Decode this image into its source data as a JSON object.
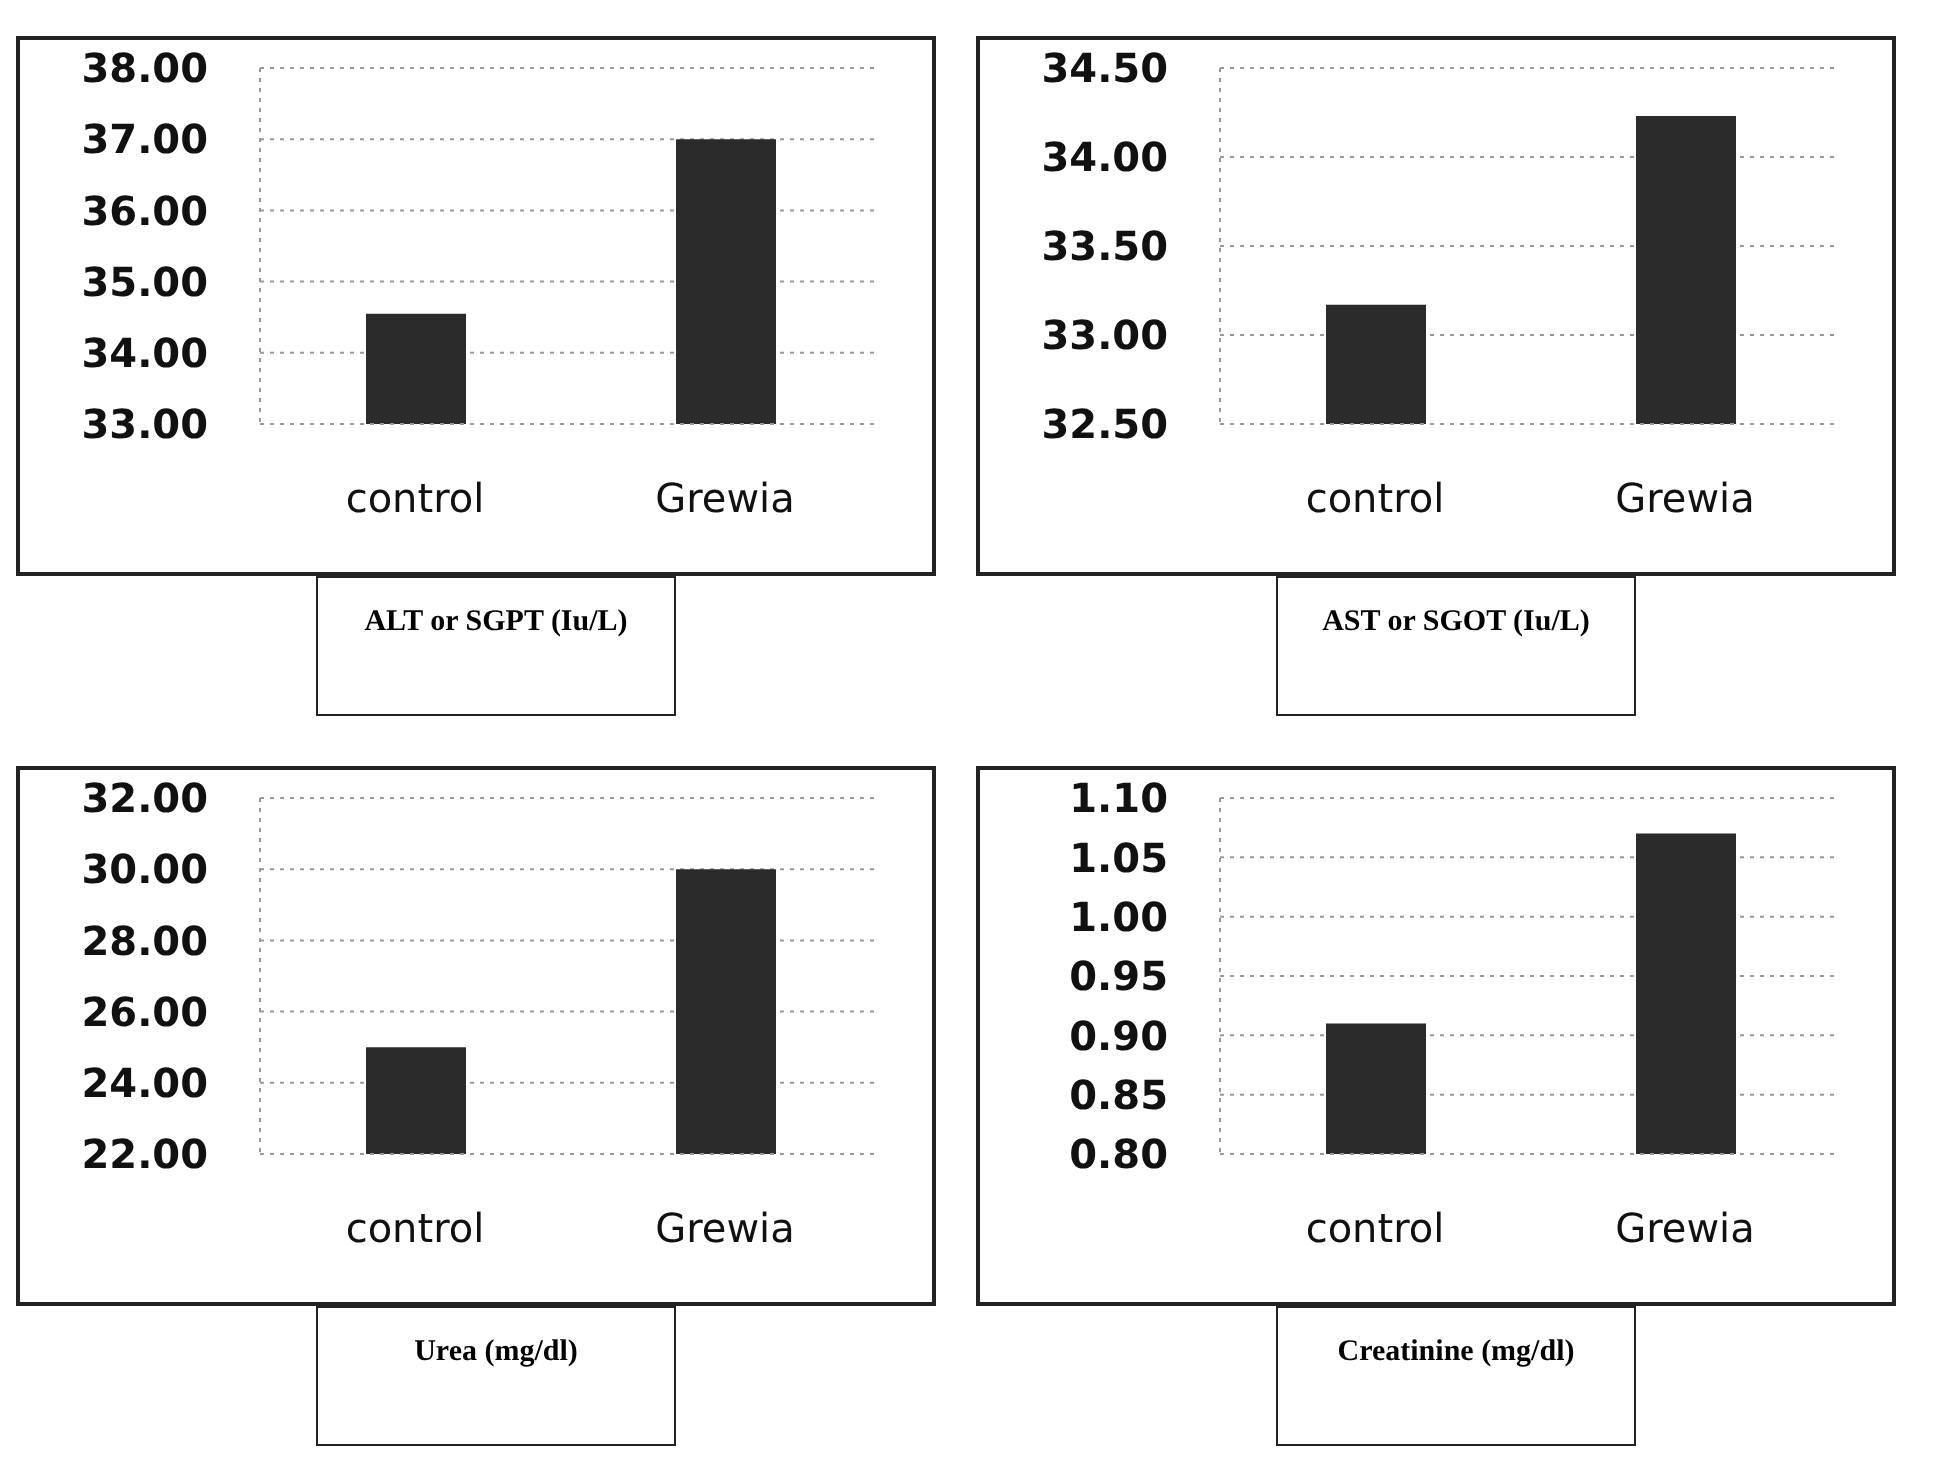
{
  "chart_data": [
    {
      "type": "bar",
      "title": "ALT or SGPT (Iu/L)",
      "categories": [
        "control",
        "Grewia"
      ],
      "values": [
        34.55,
        37.0
      ],
      "color": "#2b2b2b",
      "ylim": [
        33,
        38
      ],
      "yticks": [
        {
          "value": 33,
          "label": "33.00"
        },
        {
          "value": 34,
          "label": "34.00"
        },
        {
          "value": 35,
          "label": "35.00"
        },
        {
          "value": 36,
          "label": "36.00"
        },
        {
          "value": 37,
          "label": "37.00"
        },
        {
          "value": 38,
          "label": "38.00"
        }
      ],
      "grid": "y"
    },
    {
      "type": "bar",
      "title": "AST or SGOT (Iu/L)",
      "categories": [
        "control",
        "Grewia"
      ],
      "values": [
        33.17,
        34.23
      ],
      "color": "#2b2b2b",
      "ylim": [
        32.5,
        34.5
      ],
      "yticks": [
        {
          "value": 32.5,
          "label": "32.50"
        },
        {
          "value": 33,
          "label": "33.00"
        },
        {
          "value": 33.5,
          "label": "33.50"
        },
        {
          "value": 34,
          "label": "34.00"
        },
        {
          "value": 34.5,
          "label": "34.50"
        }
      ],
      "grid": "y"
    },
    {
      "type": "bar",
      "title": "Urea (mg/dl)",
      "categories": [
        "control",
        "Grewia"
      ],
      "values": [
        25.0,
        30.0
      ],
      "color": "#2b2b2b",
      "ylim": [
        22,
        32
      ],
      "yticks": [
        {
          "value": 22,
          "label": "22.00"
        },
        {
          "value": 24,
          "label": "24.00"
        },
        {
          "value": 26,
          "label": "26.00"
        },
        {
          "value": 28,
          "label": "28.00"
        },
        {
          "value": 30,
          "label": "30.00"
        },
        {
          "value": 32,
          "label": "32.00"
        }
      ],
      "grid": "y"
    },
    {
      "type": "bar",
      "title": "Creatinine (mg/dl)",
      "categories": [
        "control",
        "Grewia"
      ],
      "values": [
        0.91,
        1.07
      ],
      "color": "#2b2b2b",
      "ylim": [
        0.8,
        1.1
      ],
      "yticks": [
        {
          "value": 0.8,
          "label": "0.80"
        },
        {
          "value": 0.85,
          "label": "0.85"
        },
        {
          "value": 0.9,
          "label": "0.90"
        },
        {
          "value": 0.95,
          "label": "0.95"
        },
        {
          "value": 1.0,
          "label": "1.00"
        },
        {
          "value": 1.05,
          "label": "1.05"
        },
        {
          "value": 1.1,
          "label": "1.10"
        }
      ],
      "grid": "y"
    }
  ]
}
